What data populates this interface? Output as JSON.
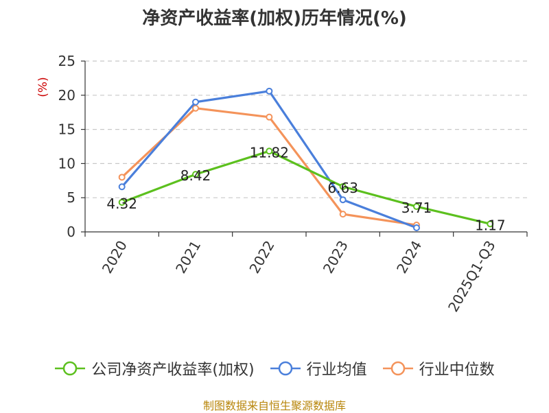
{
  "chart_data": {
    "type": "line",
    "title": "净资产收益率(加权)历年情况(%)",
    "ylabel": "(%)",
    "xlabel": "",
    "categories": [
      "2020",
      "2021",
      "2022",
      "2023",
      "2024",
      "2025Q1-Q3"
    ],
    "ylim": [
      0,
      25
    ],
    "yticks": [
      0,
      5,
      10,
      15,
      20,
      25
    ],
    "grid": true,
    "legend_position": "bottom",
    "series": [
      {
        "name": "公司净资产收益率(加权)",
        "color": "#5cc01e",
        "values": [
          4.32,
          8.42,
          11.82,
          6.63,
          3.71,
          1.17
        ],
        "labels": [
          "4.32",
          "8.42",
          "11.82",
          "6.63",
          "3.71",
          "1.17"
        ]
      },
      {
        "name": "行业均值",
        "color": "#4a7fdb",
        "values": [
          6.6,
          19.0,
          20.6,
          4.7,
          0.6,
          null
        ]
      },
      {
        "name": "行业中位数",
        "color": "#f4935a",
        "values": [
          8.0,
          18.1,
          16.8,
          2.6,
          1.0,
          null
        ]
      }
    ]
  },
  "source": "制图数据来自恒生聚源数据库"
}
